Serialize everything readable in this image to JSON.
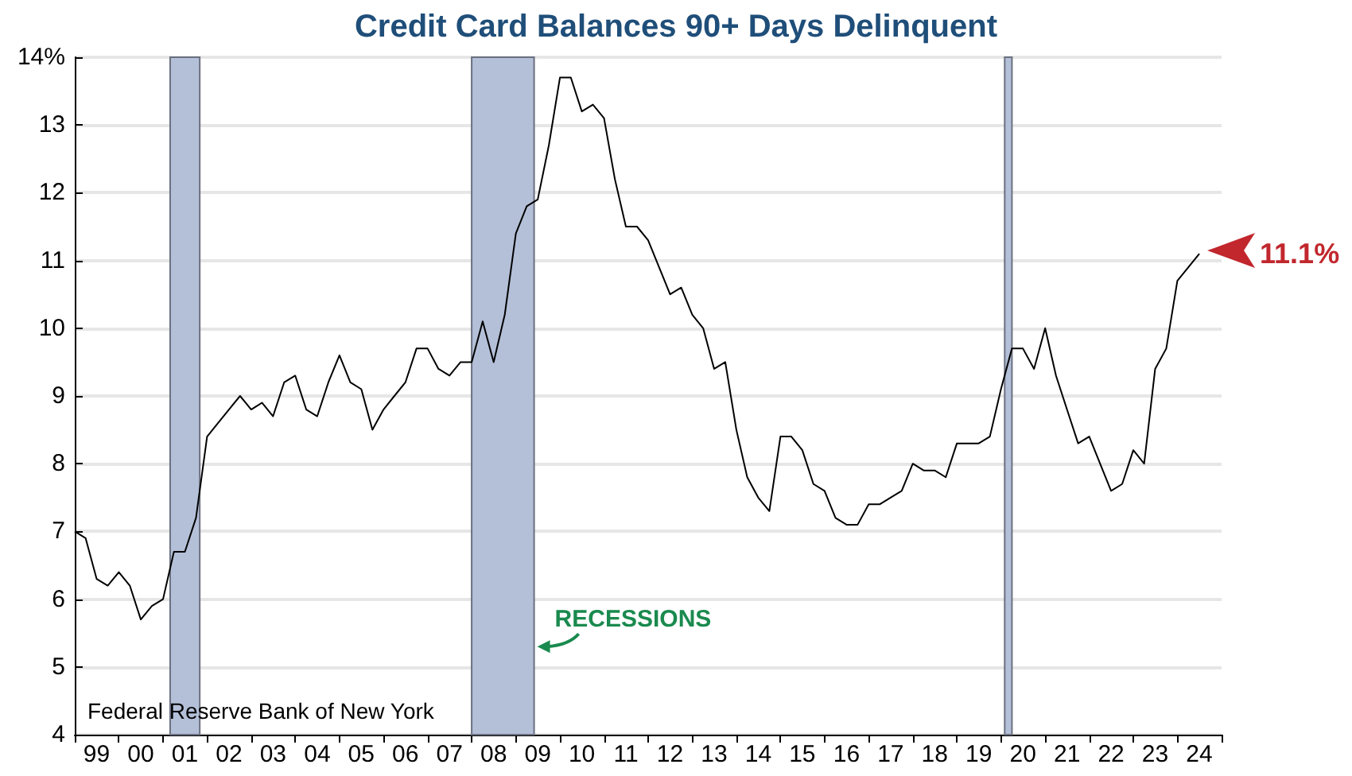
{
  "chart_data": {
    "type": "line",
    "title": "Credit Card Balances 90+ Days Delinquent",
    "x": [
      "1999-01",
      "1999-04",
      "1999-07",
      "1999-10",
      "2000-01",
      "2000-04",
      "2000-07",
      "2000-10",
      "2001-01",
      "2001-04",
      "2001-07",
      "2001-10",
      "2002-01",
      "2002-04",
      "2002-07",
      "2002-10",
      "2003-01",
      "2003-04",
      "2003-07",
      "2003-10",
      "2004-01",
      "2004-04",
      "2004-07",
      "2004-10",
      "2005-01",
      "2005-04",
      "2005-07",
      "2005-10",
      "2006-01",
      "2006-04",
      "2006-07",
      "2006-10",
      "2007-01",
      "2007-04",
      "2007-07",
      "2007-10",
      "2008-01",
      "2008-04",
      "2008-07",
      "2008-10",
      "2009-01",
      "2009-04",
      "2009-07",
      "2009-10",
      "2010-01",
      "2010-04",
      "2010-07",
      "2010-10",
      "2011-01",
      "2011-04",
      "2011-07",
      "2011-10",
      "2012-01",
      "2012-04",
      "2012-07",
      "2012-10",
      "2013-01",
      "2013-04",
      "2013-07",
      "2013-10",
      "2014-01",
      "2014-04",
      "2014-07",
      "2014-10",
      "2015-01",
      "2015-04",
      "2015-07",
      "2015-10",
      "2016-01",
      "2016-04",
      "2016-07",
      "2016-10",
      "2017-01",
      "2017-04",
      "2017-07",
      "2017-10",
      "2018-01",
      "2018-04",
      "2018-07",
      "2018-10",
      "2019-01",
      "2019-04",
      "2019-07",
      "2019-10",
      "2020-01",
      "2020-04",
      "2020-07",
      "2020-10",
      "2021-01",
      "2021-04",
      "2021-07",
      "2021-10",
      "2022-01",
      "2022-04",
      "2022-07",
      "2022-10",
      "2023-01",
      "2023-04",
      "2023-07",
      "2023-10",
      "2024-01",
      "2024-04",
      "2024-07"
    ],
    "series": [
      {
        "color": "#000000",
        "values": [
          7.0,
          6.9,
          6.3,
          6.2,
          6.4,
          6.2,
          5.7,
          5.9,
          6.0,
          6.7,
          6.7,
          7.2,
          8.4,
          8.6,
          8.8,
          9.0,
          8.8,
          8.9,
          8.7,
          9.2,
          9.3,
          8.8,
          8.7,
          9.2,
          9.6,
          9.2,
          9.1,
          8.5,
          8.8,
          9.0,
          9.2,
          9.7,
          9.7,
          9.4,
          9.3,
          9.5,
          9.5,
          10.1,
          9.5,
          10.2,
          11.4,
          11.8,
          11.9,
          12.7,
          13.7,
          13.7,
          13.2,
          13.3,
          13.1,
          12.2,
          11.5,
          11.5,
          11.3,
          10.9,
          10.5,
          10.6,
          10.2,
          10.0,
          9.4,
          9.5,
          8.5,
          7.8,
          7.5,
          7.3,
          8.4,
          8.4,
          8.2,
          7.7,
          7.6,
          7.2,
          7.1,
          7.1,
          7.4,
          7.4,
          7.5,
          7.6,
          8.0,
          7.9,
          7.9,
          7.8,
          8.3,
          8.3,
          8.3,
          8.4,
          9.1,
          9.7,
          9.7,
          9.4,
          10.0,
          9.3,
          8.8,
          8.3,
          8.4,
          8.0,
          7.6,
          7.7,
          8.2,
          8.0,
          9.4,
          9.7,
          10.7,
          10.9,
          11.1
        ]
      }
    ],
    "xlim": [
      "1999-01",
      "2025-01"
    ],
    "xticks": [
      {
        "value": "1999-01",
        "label": null
      },
      {
        "value": "1999-07",
        "label": "99"
      },
      {
        "value": "2000-01",
        "label": null
      },
      {
        "value": "2000-07",
        "label": "00"
      },
      {
        "value": "2001-01",
        "label": null
      },
      {
        "value": "2001-07",
        "label": "01"
      },
      {
        "value": "2002-01",
        "label": null
      },
      {
        "value": "2002-07",
        "label": "02"
      },
      {
        "value": "2003-01",
        "label": null
      },
      {
        "value": "2003-07",
        "label": "03"
      },
      {
        "value": "2004-01",
        "label": null
      },
      {
        "value": "2004-07",
        "label": "04"
      },
      {
        "value": "2005-01",
        "label": null
      },
      {
        "value": "2005-07",
        "label": "05"
      },
      {
        "value": "2006-01",
        "label": null
      },
      {
        "value": "2006-07",
        "label": "06"
      },
      {
        "value": "2007-01",
        "label": null
      },
      {
        "value": "2007-07",
        "label": "07"
      },
      {
        "value": "2008-01",
        "label": null
      },
      {
        "value": "2008-07",
        "label": "08"
      },
      {
        "value": "2009-01",
        "label": null
      },
      {
        "value": "2009-07",
        "label": "09"
      },
      {
        "value": "2010-01",
        "label": null
      },
      {
        "value": "2010-07",
        "label": "10"
      },
      {
        "value": "2011-01",
        "label": null
      },
      {
        "value": "2011-07",
        "label": "11"
      },
      {
        "value": "2012-01",
        "label": null
      },
      {
        "value": "2012-07",
        "label": "12"
      },
      {
        "value": "2013-01",
        "label": null
      },
      {
        "value": "2013-07",
        "label": "13"
      },
      {
        "value": "2014-01",
        "label": null
      },
      {
        "value": "2014-07",
        "label": "14"
      },
      {
        "value": "2015-01",
        "label": null
      },
      {
        "value": "2015-07",
        "label": "15"
      },
      {
        "value": "2016-01",
        "label": null
      },
      {
        "value": "2016-07",
        "label": "16"
      },
      {
        "value": "2017-01",
        "label": null
      },
      {
        "value": "2017-07",
        "label": "17"
      },
      {
        "value": "2018-01",
        "label": null
      },
      {
        "value": "2018-07",
        "label": "18"
      },
      {
        "value": "2019-01",
        "label": null
      },
      {
        "value": "2019-07",
        "label": "19"
      },
      {
        "value": "2020-01",
        "label": null
      },
      {
        "value": "2020-07",
        "label": "20"
      },
      {
        "value": "2021-01",
        "label": null
      },
      {
        "value": "2021-07",
        "label": "21"
      },
      {
        "value": "2022-01",
        "label": null
      },
      {
        "value": "2022-07",
        "label": "22"
      },
      {
        "value": "2023-01",
        "label": null
      },
      {
        "value": "2023-07",
        "label": "23"
      },
      {
        "value": "2024-01",
        "label": null
      },
      {
        "value": "2024-07",
        "label": "24"
      },
      {
        "value": "2025-01",
        "label": null
      }
    ],
    "ylim": [
      4,
      14
    ],
    "yticks": [
      4,
      5,
      6,
      7,
      8,
      9,
      10,
      11,
      12,
      13,
      {
        "value": 14,
        "label": "14%"
      }
    ],
    "grid": "y",
    "bands": [
      {
        "axis": "x",
        "from": "2001-03",
        "to": "2001-11",
        "color": "#b4c0d8"
      },
      {
        "axis": "x",
        "from": "2008-01",
        "to": "2009-06",
        "color": "#b4c0d8"
      },
      {
        "axis": "x",
        "from": "2020-02",
        "to": "2020-04",
        "color": "#b4c0d8"
      }
    ],
    "annotations": [
      "Federal Reserve Bank of New York",
      {
        "text": "RECESSIONS",
        "x": "2009-06",
        "y": 5.3
      },
      {
        "text": "11.1%",
        "x": "2024-07",
        "y": 11.1
      }
    ]
  }
}
